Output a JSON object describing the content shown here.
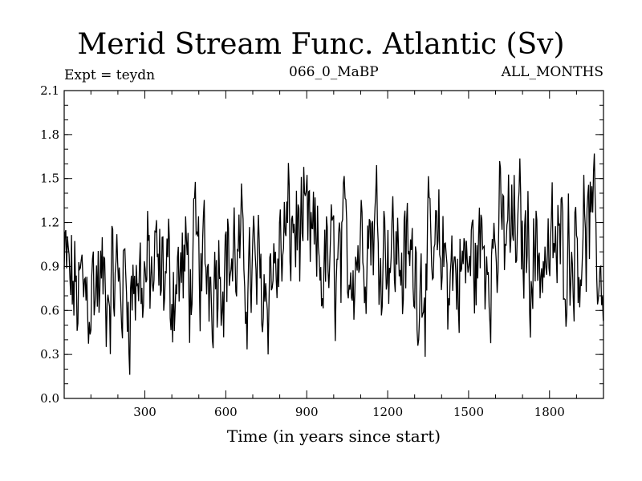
{
  "header": {
    "title": "Merid Stream Func. Atlantic (Sv)",
    "expt": "Expt = teydn",
    "run": "066_0_MaBP",
    "period": "ALL_MONTHS"
  },
  "chart_data": {
    "type": "line",
    "xlabel": "Time (in years since start)",
    "ylabel": "",
    "xlim": [
      1,
      2000
    ],
    "ylim": [
      0.0,
      2.1
    ],
    "xticks": [
      300,
      600,
      900,
      1200,
      1500,
      1800
    ],
    "yticks": [
      0.0,
      0.3,
      0.6,
      0.9,
      1.2,
      1.5,
      1.8,
      2.1
    ],
    "ytick_labels": [
      "0.0",
      "0.3",
      "0.6",
      "0.9",
      "1.2",
      "1.5",
      "1.8",
      "2.1"
    ],
    "grid": false,
    "series": [
      {
        "color": "#000000",
        "x": [
          1,
          50,
          100,
          150,
          200,
          250,
          300,
          350,
          400,
          450,
          500,
          550,
          600,
          650,
          700,
          750,
          800,
          850,
          900,
          950,
          1000,
          1050,
          1100,
          1150,
          1200,
          1250,
          1300,
          1350,
          1400,
          1450,
          1500,
          1550,
          1600,
          1650,
          1700,
          1750,
          1800,
          1850,
          1900,
          1950,
          2000
        ],
        "values": [
          0.85,
          0.7,
          0.78,
          0.72,
          0.8,
          0.76,
          0.85,
          0.8,
          0.82,
          0.85,
          0.88,
          0.92,
          1.0,
          0.9,
          0.85,
          0.8,
          0.95,
          1.2,
          1.05,
          0.9,
          0.88,
          0.95,
          1.1,
          1.2,
          1.1,
          0.95,
          0.9,
          0.85,
          0.95,
          0.85,
          0.9,
          1.0,
          1.05,
          1.15,
          1.1,
          1.0,
          0.95,
          1.05,
          1.1,
          1.15,
          0.8
        ]
      }
    ]
  }
}
